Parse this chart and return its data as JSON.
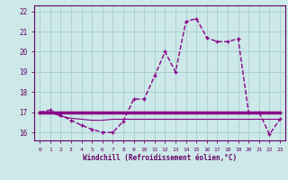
{
  "hours": [
    0,
    1,
    2,
    3,
    4,
    5,
    6,
    7,
    8,
    9,
    10,
    11,
    12,
    13,
    14,
    15,
    16,
    17,
    18,
    19,
    20,
    21,
    22,
    23
  ],
  "windchill": [
    17.0,
    17.1,
    16.85,
    16.6,
    16.35,
    16.15,
    16.0,
    16.0,
    16.55,
    17.65,
    17.65,
    18.8,
    20.0,
    19.0,
    21.5,
    21.65,
    20.7,
    20.5,
    20.5,
    20.65,
    17.0,
    17.0,
    15.9,
    16.65
  ],
  "temp_solid": [
    17.0,
    17.0,
    17.0,
    17.0,
    17.0,
    17.0,
    17.0,
    17.0,
    17.0,
    17.0,
    17.0,
    17.0,
    17.0,
    17.0,
    17.0,
    17.0,
    17.0,
    17.0,
    17.0,
    17.0,
    17.0,
    17.0,
    17.0,
    17.0
  ],
  "temp_thin": [
    17.0,
    17.0,
    16.8,
    16.7,
    16.65,
    16.6,
    16.6,
    16.65,
    16.65,
    16.65,
    16.65,
    16.65,
    16.65,
    16.65,
    16.65,
    16.65,
    16.65,
    16.65,
    16.65,
    16.65,
    16.65,
    16.65,
    16.65,
    16.65
  ],
  "line_color": "#880088",
  "bg_color": "#cce8e8",
  "grid_color": "#aacccc",
  "axis_color": "#660066",
  "yticks": [
    16,
    17,
    18,
    19,
    20,
    21,
    22
  ],
  "ylim": [
    15.6,
    22.3
  ],
  "xlim": [
    -0.5,
    23.5
  ],
  "xlabel": "Windchill (Refroidissement éolien,°C)"
}
